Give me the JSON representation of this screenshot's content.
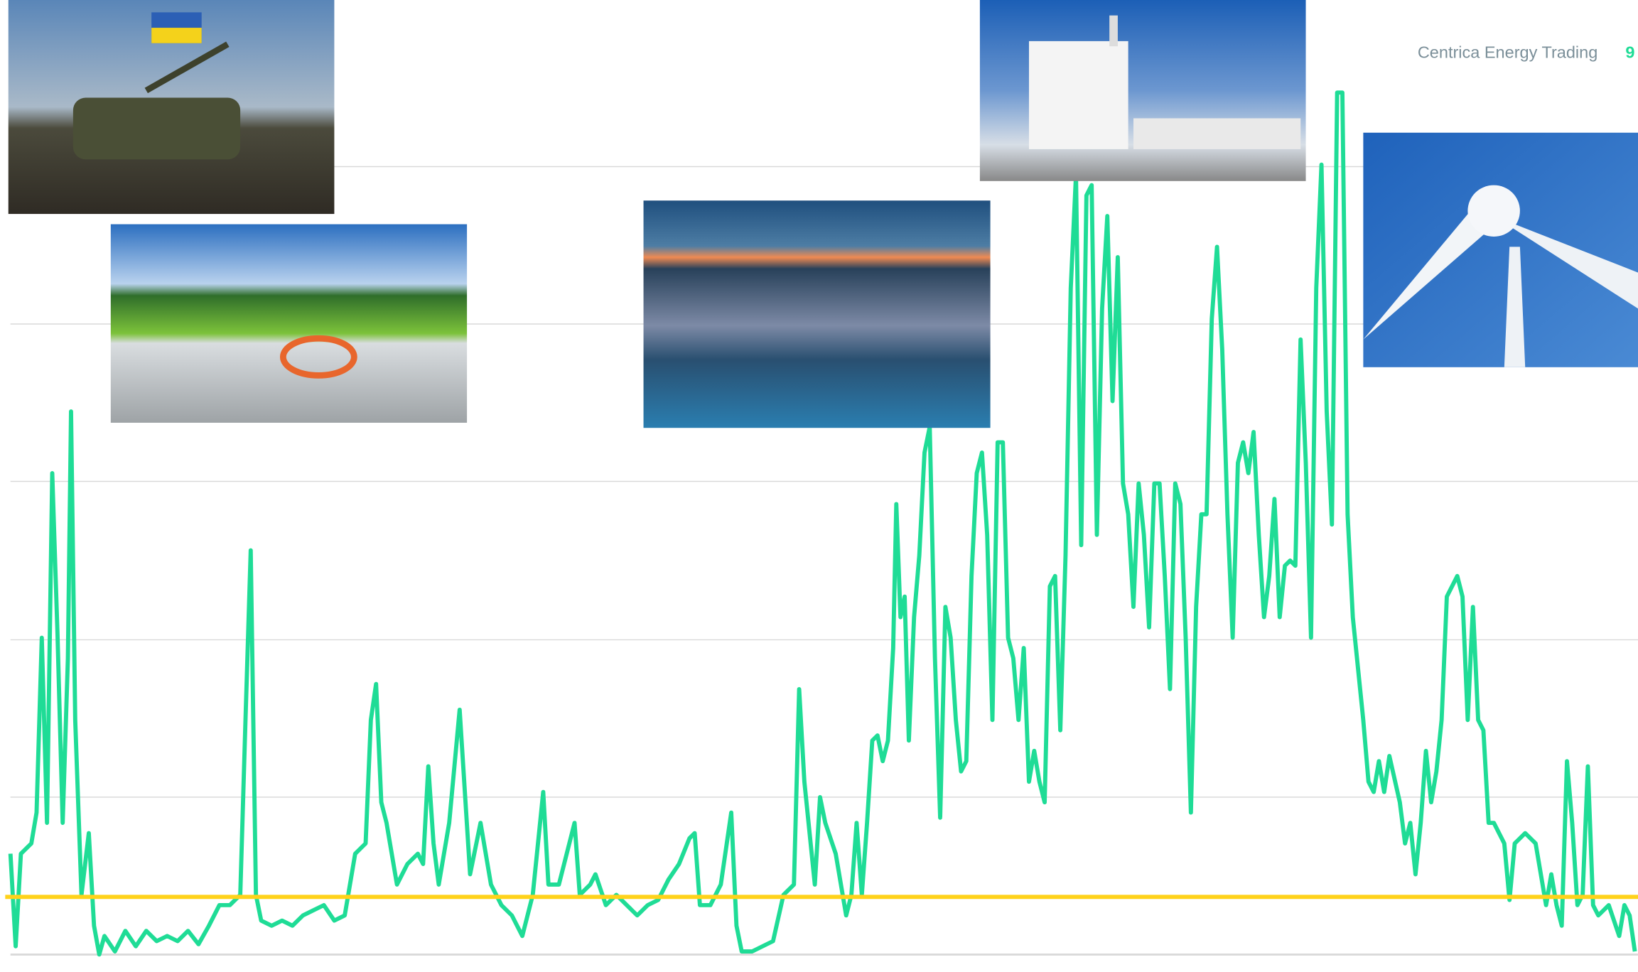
{
  "header": {
    "company": "Centrica Energy Trading",
    "page_number": "9"
  },
  "chart_data": {
    "type": "line",
    "xlim": [
      0,
      1568
    ],
    "ylim": [
      0,
      928
    ],
    "yticks": [
      0,
      153,
      306,
      460,
      613,
      766
    ],
    "grid": true,
    "reference_line": {
      "value": 56,
      "color": "#ffd21a"
    },
    "series": [
      {
        "color": "#1fdc96",
        "x": [
          10,
          15,
          20,
          30,
          35,
          40,
          45,
          50,
          55,
          60,
          65,
          68,
          72,
          78,
          85,
          90,
          95,
          100,
          110,
          120,
          130,
          140,
          150,
          160,
          170,
          180,
          190,
          200,
          210,
          220,
          230,
          235,
          240,
          245,
          250,
          260,
          270,
          280,
          290,
          300,
          310,
          320,
          330,
          340,
          350,
          355,
          360,
          365,
          370,
          380,
          390,
          400,
          405,
          410,
          415,
          420,
          430,
          440,
          445,
          450,
          460,
          470,
          480,
          490,
          500,
          510,
          520,
          525,
          535,
          545,
          550,
          555,
          565,
          570,
          580,
          590,
          600,
          610,
          620,
          630,
          640,
          650,
          660,
          665,
          670,
          680,
          690,
          700,
          705,
          710,
          720,
          730,
          740,
          750,
          760,
          765,
          770,
          780,
          785,
          790,
          800,
          810,
          815,
          820,
          825,
          830,
          835,
          840,
          845,
          850,
          855,
          858,
          862,
          866,
          870,
          875,
          880,
          885,
          890,
          895,
          900,
          905,
          910,
          915,
          920,
          925,
          930,
          935,
          940,
          945,
          950,
          955,
          960,
          965,
          970,
          975,
          980,
          985,
          990,
          995,
          1000,
          1005,
          1010,
          1015,
          1020,
          1025,
          1030,
          1035,
          1040,
          1045,
          1050,
          1055,
          1060,
          1065,
          1070,
          1075,
          1080,
          1085,
          1090,
          1095,
          1100,
          1105,
          1110,
          1115,
          1120,
          1125,
          1130,
          1135,
          1140,
          1145,
          1150,
          1155,
          1160,
          1165,
          1170,
          1175,
          1180,
          1185,
          1190,
          1195,
          1200,
          1205,
          1210,
          1215,
          1220,
          1225,
          1230,
          1235,
          1240,
          1245,
          1250,
          1255,
          1260,
          1265,
          1270,
          1275,
          1280,
          1285,
          1290,
          1295,
          1300,
          1305,
          1310,
          1315,
          1320,
          1325,
          1330,
          1340,
          1345,
          1350,
          1355,
          1360,
          1365,
          1370,
          1375,
          1380,
          1385,
          1390,
          1395,
          1400,
          1405,
          1410,
          1415,
          1420,
          1425,
          1430,
          1435,
          1440,
          1445,
          1450,
          1460,
          1470,
          1480,
          1485,
          1490,
          1495,
          1500,
          1505,
          1510,
          1515,
          1520,
          1525,
          1530,
          1540,
          1550,
          1555,
          1560,
          1565
        ],
        "values": [
          98,
          8,
          98,
          108,
          138,
          308,
          128,
          468,
          313,
          128,
          288,
          528,
          228,
          58,
          118,
          28,
          0,
          18,
          3,
          23,
          8,
          23,
          13,
          18,
          13,
          23,
          10,
          28,
          48,
          48,
          58,
          228,
          393,
          58,
          33,
          28,
          33,
          28,
          38,
          43,
          48,
          33,
          38,
          98,
          108,
          228,
          263,
          148,
          128,
          68,
          88,
          98,
          88,
          183,
          108,
          68,
          128,
          238,
          158,
          78,
          128,
          68,
          48,
          38,
          18,
          58,
          158,
          68,
          68,
          108,
          128,
          58,
          68,
          78,
          48,
          58,
          48,
          38,
          48,
          53,
          73,
          88,
          113,
          118,
          48,
          48,
          68,
          138,
          28,
          3,
          3,
          8,
          13,
          58,
          68,
          258,
          168,
          68,
          153,
          128,
          98,
          38,
          58,
          128,
          58,
          128,
          208,
          213,
          188,
          208,
          298,
          438,
          328,
          348,
          208,
          328,
          388,
          488,
          513,
          288,
          133,
          338,
          308,
          228,
          178,
          188,
          368,
          468,
          488,
          408,
          228,
          498,
          498,
          308,
          288,
          228,
          298,
          168,
          198,
          168,
          148,
          358,
          368,
          218,
          388,
          648,
          758,
          398,
          738,
          748,
          408,
          628,
          718,
          538,
          678,
          458,
          428,
          338,
          458,
          408,
          318,
          458,
          458,
          368,
          258,
          458,
          438,
          308,
          138,
          338,
          428,
          428,
          618,
          688,
          588,
          428,
          308,
          478,
          498,
          468,
          508,
          408,
          328,
          368,
          443,
          328,
          378,
          383,
          378,
          598,
          478,
          308,
          648,
          768,
          528,
          418,
          838,
          838,
          428,
          328,
          278,
          228,
          168,
          158,
          188,
          158,
          193,
          148,
          108,
          128,
          78,
          128,
          198,
          148,
          178,
          228,
          348,
          358,
          368,
          348,
          228,
          338,
          228,
          218,
          128,
          128,
          118,
          108,
          53,
          108,
          118,
          108,
          48,
          78,
          48,
          28,
          188,
          128,
          48,
          58,
          183,
          48,
          38,
          48,
          18,
          48,
          38,
          3
        ]
      }
    ]
  }
}
